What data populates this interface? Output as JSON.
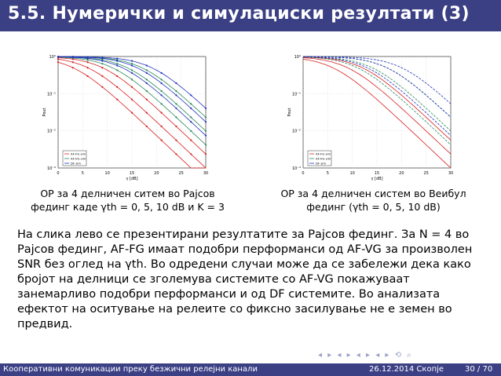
{
  "slide": {
    "title": "5.5.  Нумерички и симулациски резултати (3)"
  },
  "left_chart": {
    "caption_line1": "OP за 4 делничен ситем во Рајсов",
    "caption_line2": "фединг каде γth = 0, 5, 10 dB и K = 3"
  },
  "right_chart": {
    "caption_line1": "OP за 4 делничен систем во Веибул",
    "caption_line2": "фединг (γth = 0, 5, 10 dB)"
  },
  "chart_data": [
    {
      "type": "line",
      "xlabel": "γ [dB]",
      "ylabel": "Pout",
      "x_ticks": [
        "0",
        "5",
        "10",
        "15",
        "20",
        "25",
        "30"
      ],
      "y_ticks": [
        "10⁰",
        "10⁻¹",
        "10⁻²",
        "10⁻³"
      ],
      "xlim": [
        0,
        30
      ],
      "ylim_log10": [
        -3,
        0
      ],
      "legend": [
        "AF-FG sim",
        "AF-VG sim",
        "DF sim"
      ],
      "legend_placement": "bottom-left",
      "series_colors": [
        "#d82020",
        "#2a8a5a",
        "#2233bb"
      ]
    },
    {
      "type": "line",
      "xlabel": "γ [dB]",
      "ylabel": "Pout",
      "x_ticks": [
        "0",
        "5",
        "10",
        "15",
        "20",
        "25",
        "30"
      ],
      "y_ticks": [
        "10⁰",
        "10⁻¹",
        "10⁻²",
        "10⁻³"
      ],
      "xlim": [
        0,
        30
      ],
      "ylim_log10": [
        -3,
        0
      ],
      "legend": [
        "AF-FG sim",
        "AF-VG sim",
        "DF sim"
      ],
      "legend_placement": "bottom-left",
      "series_colors": [
        "#d82020",
        "#2a8a5a",
        "#2233bb"
      ]
    }
  ],
  "body": {
    "text": "На слика лево се презентирани резултатите за Рајсов фединг. За N = 4 во Рајсов фединг, AF-FG имаат подобри перформанси од AF-VG за произволен SNR без оглед на γth. Во одредени случаи може да се забележи дека како бројот на делници се зголемува системите со AF-VG покажуваат занемарливо подобри перформанси и од DF системите. Во анализата ефектот на оситување на релеите со фиксно засилување не е земен во предвид."
  },
  "nav_symbols": "◂ ▸ ◂ ▸ ◂ ▸ ◂ ▸ ⟲ ⌕",
  "footer": {
    "left": "Кооперативни комуникации преку безжични релејни канали",
    "date": "26.12.2014 Скопје",
    "page": "30 / 70"
  }
}
